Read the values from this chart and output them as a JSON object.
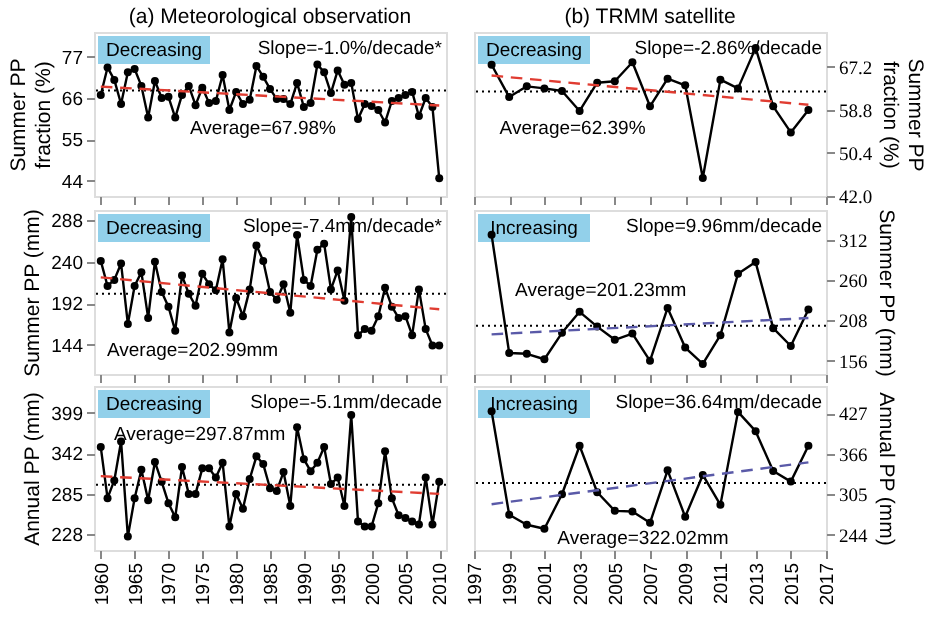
{
  "chart_data": [
    {
      "type": "line",
      "title": "(a) Meteorological observation",
      "ylabel": "Summer PP fraction (%)",
      "xlim": [
        1959,
        2011
      ],
      "xticks": [
        1960,
        1965,
        1970,
        1975,
        1980,
        1985,
        1990,
        1995,
        2000,
        2005,
        2010
      ],
      "ylim": [
        40,
        83.5
      ],
      "yticks": [
        44,
        55,
        66,
        77
      ],
      "tick_labels": "y",
      "marker": "circle",
      "x": [
        1960,
        1961,
        1962,
        1963,
        1964,
        1965,
        1966,
        1967,
        1968,
        1969,
        1970,
        1971,
        1972,
        1973,
        1974,
        1975,
        1976,
        1977,
        1978,
        1979,
        1980,
        1981,
        1982,
        1983,
        1984,
        1985,
        1986,
        1987,
        1988,
        1989,
        1990,
        1991,
        1992,
        1993,
        1994,
        1995,
        1996,
        1997,
        1998,
        1999,
        2000,
        2001,
        2002,
        2003,
        2004,
        2005,
        2006,
        2007,
        2008,
        2009,
        2010
      ],
      "series": [
        {
          "color": "#000000",
          "values": [
            66.8,
            74.1,
            70.8,
            64.4,
            72.8,
            73.7,
            69.2,
            60.8,
            70.5,
            66,
            66.3,
            60.8,
            66.8,
            69.2,
            64.1,
            68.7,
            64.7,
            65.2,
            72.1,
            62.8,
            67.6,
            64.4,
            65.5,
            74.5,
            71.6,
            68.4,
            65.7,
            65.7,
            64.4,
            70,
            63.6,
            64.7,
            74.9,
            72.8,
            67.3,
            73.3,
            69.5,
            70,
            60.4,
            64.4,
            63.9,
            62.8,
            59.5,
            65.2,
            66,
            66.8,
            67.6,
            61.2,
            66,
            63.6,
            44.7
          ]
        },
        {
          "type": "line",
          "color": "#e03c31",
          "marker": "none",
          "line_style": "dashed",
          "x": [
            1960,
            2010
          ],
          "values": [
            69,
            64
          ]
        }
      ],
      "ref_lines": [
        {
          "axis": "y",
          "value": 67.98,
          "label": "Average=67.98%",
          "color": "#000000",
          "line_style": "dotted"
        }
      ],
      "annotations": [
        "Decreasing",
        "Slope=-1.0%/decade*"
      ]
    },
    {
      "type": "line",
      "title": "(b) TRMM satellite",
      "ylabel": "Summer PP fraction (%)",
      "xlim": [
        1997,
        2017
      ],
      "xticks": [
        1997,
        1999,
        2001,
        2003,
        2005,
        2007,
        2009,
        2011,
        2013,
        2015,
        2017
      ],
      "ylim": [
        42,
        74
      ],
      "yticks": [
        {
          "value": 42,
          "label": "42.0"
        },
        {
          "value": 50.4,
          "label": "50.4"
        },
        {
          "value": 58.8,
          "label": "58.8"
        },
        {
          "value": 67.2,
          "label": "67.2"
        }
      ],
      "tick_labels": "y",
      "marker": "circle",
      "x": [
        1998,
        1999,
        2000,
        2001,
        2002,
        2003,
        2004,
        2005,
        2006,
        2007,
        2008,
        2009,
        2010,
        2011,
        2012,
        2013,
        2014,
        2015,
        2016
      ],
      "series": [
        {
          "color": "#000000",
          "values": [
            67.6,
            61.3,
            63.4,
            63,
            62.5,
            58.6,
            64.1,
            64.4,
            68.1,
            59.5,
            64.9,
            63.6,
            45.5,
            64.7,
            63,
            70.9,
            59.5,
            54.4,
            58.8
          ]
        },
        {
          "type": "line",
          "color": "#e03c31",
          "marker": "none",
          "line_style": "dashed",
          "x": [
            1998,
            2016
          ],
          "values": [
            65.5,
            59.8
          ]
        }
      ],
      "ref_lines": [
        {
          "axis": "y",
          "value": 62.39,
          "label": "Average=62.39%",
          "color": "#000000",
          "line_style": "dotted"
        }
      ],
      "annotations": [
        "Decreasing",
        "Slope=-2.86%/decade"
      ]
    },
    {
      "type": "line",
      "ylabel": "Summer PP (mm)",
      "xlim": [
        1959,
        2011
      ],
      "xticks": [
        1960,
        1965,
        1970,
        1975,
        1980,
        1985,
        1990,
        1995,
        2000,
        2005,
        2010
      ],
      "ylim": [
        110,
        300
      ],
      "yticks": [
        144,
        192,
        240,
        288
      ],
      "tick_labels": "y",
      "marker": "circle",
      "x": [
        1960,
        1961,
        1962,
        1963,
        1964,
        1965,
        1966,
        1967,
        1968,
        1969,
        1970,
        1971,
        1972,
        1973,
        1974,
        1975,
        1976,
        1977,
        1978,
        1979,
        1980,
        1981,
        1982,
        1983,
        1984,
        1985,
        1986,
        1987,
        1988,
        1989,
        1990,
        1991,
        1992,
        1993,
        1994,
        1995,
        1996,
        1997,
        1998,
        1999,
        2000,
        2001,
        2002,
        2003,
        2004,
        2005,
        2006,
        2007,
        2008,
        2009,
        2010
      ],
      "series": [
        {
          "color": "#000000",
          "values": [
            241,
            212,
            219,
            238,
            168,
            212,
            228,
            175,
            240,
            205,
            188,
            160,
            224,
            203,
            189,
            226,
            214,
            207,
            243,
            158,
            198,
            177,
            208,
            259,
            241,
            205,
            196,
            214,
            181,
            271,
            219,
            212,
            254,
            261,
            208,
            230,
            195,
            292,
            155,
            162,
            160,
            177,
            210,
            188,
            175,
            177,
            155,
            208,
            162,
            143,
            143
          ]
        },
        {
          "type": "line",
          "color": "#e03c31",
          "marker": "none",
          "line_style": "dashed",
          "x": [
            1960,
            2010
          ],
          "values": [
            222,
            185
          ]
        }
      ],
      "ref_lines": [
        {
          "axis": "y",
          "value": 202.99,
          "label": "Average=202.99mm",
          "color": "#000000",
          "line_style": "dotted"
        }
      ],
      "annotations": [
        "Decreasing",
        "Slope=-7.4mm/decade*"
      ]
    },
    {
      "type": "line",
      "ylabel": "Summer PP (mm)",
      "xlim": [
        1997,
        2017
      ],
      "xticks": [
        1997,
        1999,
        2001,
        2003,
        2005,
        2007,
        2009,
        2011,
        2013,
        2015,
        2017
      ],
      "ylim": [
        139,
        350
      ],
      "yticks": [
        156,
        208,
        260,
        312
      ],
      "tick_labels": "y",
      "marker": "circle",
      "x": [
        1998,
        1999,
        2000,
        2001,
        2002,
        2003,
        2004,
        2005,
        2006,
        2007,
        2008,
        2009,
        2010,
        2011,
        2012,
        2013,
        2014,
        2015,
        2016
      ],
      "series": [
        {
          "color": "#000000",
          "values": [
            318,
            166,
            165,
            158,
            192,
            219,
            200,
            183,
            191,
            156,
            224,
            173,
            152,
            189,
            268,
            283,
            198,
            175,
            222
          ]
        },
        {
          "type": "line",
          "color": "#5a5aa8",
          "marker": "none",
          "line_style": "dashed",
          "x": [
            1998,
            2016
          ],
          "values": [
            190,
            211
          ]
        }
      ],
      "ref_lines": [
        {
          "axis": "y",
          "value": 201.23,
          "label": "Average=201.23mm",
          "color": "#000000",
          "line_style": "dotted"
        }
      ],
      "annotations": [
        "Increasing",
        "Slope=9.96mm/decade"
      ]
    },
    {
      "type": "line",
      "ylabel": "Annual PP (mm)",
      "xlim": [
        1959,
        2011
      ],
      "xticks": [
        1960,
        1965,
        1970,
        1975,
        1980,
        1985,
        1990,
        1995,
        2000,
        2005,
        2010
      ],
      "ylim": [
        206,
        437
      ],
      "yticks": [
        228,
        285,
        342,
        399
      ],
      "marker": "circle",
      "x": [
        1960,
        1961,
        1962,
        1963,
        1964,
        1965,
        1966,
        1967,
        1968,
        1969,
        1970,
        1971,
        1972,
        1973,
        1974,
        1975,
        1976,
        1977,
        1978,
        1979,
        1980,
        1981,
        1982,
        1983,
        1984,
        1985,
        1986,
        1987,
        1988,
        1989,
        1990,
        1991,
        1992,
        1993,
        1994,
        1995,
        1996,
        1997,
        1998,
        1999,
        2000,
        2001,
        2002,
        2003,
        2004,
        2005,
        2006,
        2007,
        2008,
        2009,
        2010
      ],
      "series": [
        {
          "color": "#000000",
          "values": [
            351,
            279,
            304,
            359,
            225,
            279,
            319,
            276,
            330,
            302,
            272,
            252,
            323,
            285,
            285,
            321,
            321,
            308,
            329,
            239,
            285,
            264,
            306,
            338,
            327,
            293,
            289,
            316,
            268,
            379,
            334,
            317,
            329,
            351,
            299,
            308,
            268,
            396,
            246,
            239,
            239,
            272,
            345,
            279,
            255,
            251,
            246,
            242,
            308,
            242,
            302
          ]
        },
        {
          "type": "line",
          "color": "#e03c31",
          "marker": "none",
          "line_style": "dashed",
          "x": [
            1960,
            2010
          ],
          "values": [
            310,
            285
          ]
        }
      ],
      "ref_lines": [
        {
          "axis": "y",
          "value": 297.87,
          "label": "Average=297.87mm",
          "color": "#000000",
          "line_style": "dotted"
        }
      ],
      "annotations": [
        "Decreasing",
        "Slope=-5.1mm/decade"
      ]
    },
    {
      "type": "line",
      "ylabel": "Annual PP (mm)",
      "xlim": [
        1997,
        2017
      ],
      "xticks": [
        1997,
        1999,
        2001,
        2003,
        2005,
        2007,
        2009,
        2011,
        2013,
        2015,
        2017
      ],
      "ylim": [
        221,
        468
      ],
      "yticks": [
        244,
        305,
        366,
        427
      ],
      "marker": "circle",
      "x": [
        1998,
        1999,
        2000,
        2001,
        2002,
        2003,
        2004,
        2005,
        2006,
        2007,
        2008,
        2009,
        2010,
        2011,
        2012,
        2013,
        2014,
        2015,
        2016
      ],
      "series": [
        {
          "color": "#000000",
          "values": [
            430,
            274,
            259,
            253,
            305,
            378,
            308,
            280,
            279,
            262,
            341,
            271,
            334,
            289,
            429,
            400,
            340,
            324,
            378
          ]
        },
        {
          "type": "line",
          "color": "#5a5aa8",
          "marker": "none",
          "line_style": "dashed",
          "x": [
            1998,
            2016
          ],
          "values": [
            290,
            353
          ]
        }
      ],
      "ref_lines": [
        {
          "axis": "y",
          "value": 322.02,
          "label": "Average=322.02mm",
          "color": "#000000",
          "line_style": "dotted"
        }
      ],
      "annotations": [
        "Increasing",
        "Slope=36.64mm/decade"
      ]
    }
  ]
}
